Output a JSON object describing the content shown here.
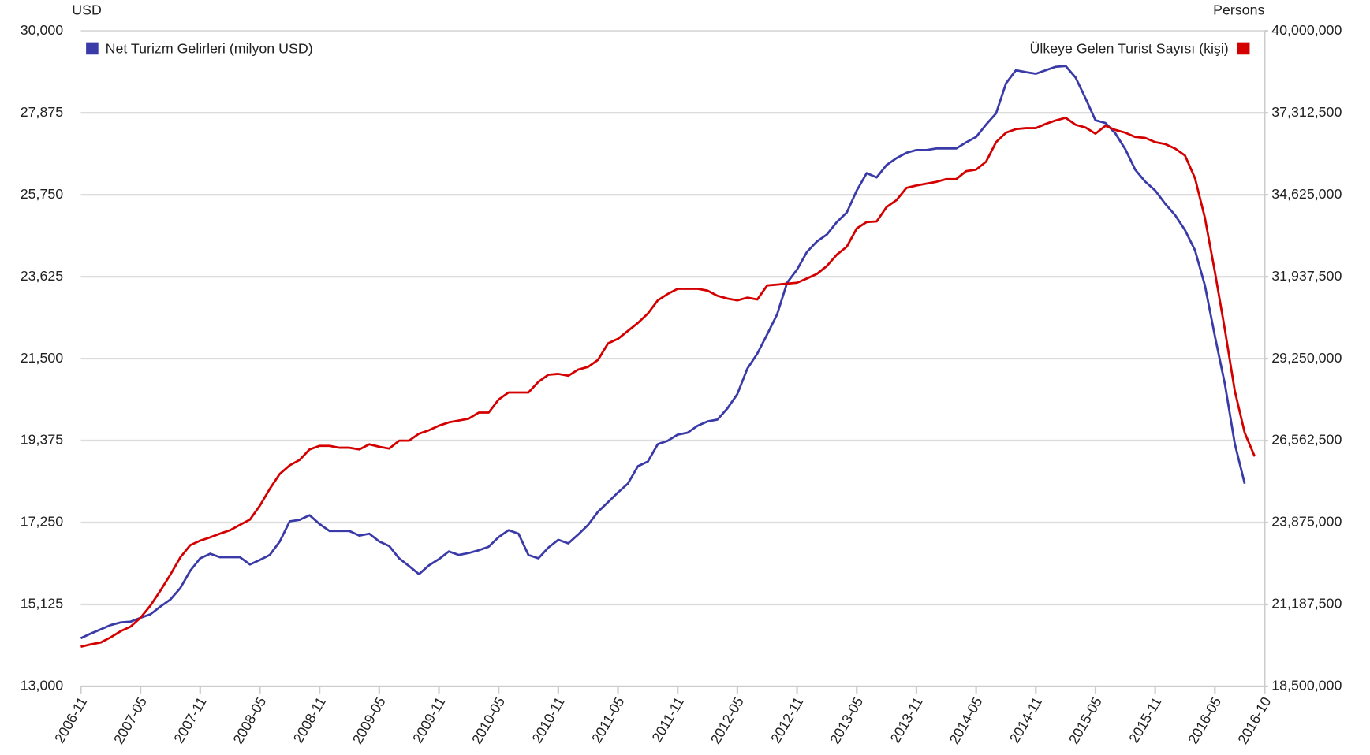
{
  "chart_data": {
    "type": "line",
    "y_label": "USD",
    "y2_label": "Persons",
    "legend": "top",
    "grid": true,
    "categories": [
      "2006-11",
      null,
      null,
      null,
      null,
      null,
      "2007-05",
      null,
      null,
      null,
      null,
      null,
      "2007-11",
      null,
      null,
      null,
      null,
      null,
      "2008-05",
      null,
      null,
      null,
      null,
      null,
      "2008-11",
      null,
      null,
      null,
      null,
      null,
      "2009-05",
      null,
      null,
      null,
      null,
      null,
      "2009-11",
      null,
      null,
      null,
      null,
      null,
      "2010-05",
      null,
      null,
      null,
      null,
      null,
      "2010-11",
      null,
      null,
      null,
      null,
      null,
      "2011-05",
      null,
      null,
      null,
      null,
      null,
      "2011-11",
      null,
      null,
      null,
      null,
      null,
      "2012-05",
      null,
      null,
      null,
      null,
      null,
      "2012-11",
      null,
      null,
      null,
      null,
      null,
      "2013-05",
      null,
      null,
      null,
      null,
      null,
      "2013-11",
      null,
      null,
      null,
      null,
      null,
      "2014-05",
      null,
      null,
      null,
      null,
      null,
      "2014-11",
      null,
      null,
      null,
      null,
      null,
      "2015-05",
      null,
      null,
      null,
      null,
      null,
      "2015-11",
      null,
      null,
      null,
      null,
      null,
      "2016-05",
      null,
      null,
      null,
      null,
      "2016-10"
    ],
    "ylim": [
      13000,
      30000
    ],
    "yticks": [
      {
        "value": 13000,
        "label": "13,000"
      },
      {
        "value": 15125,
        "label": "15,125"
      },
      {
        "value": 17250,
        "label": "17,250"
      },
      {
        "value": 19375,
        "label": "19,375"
      },
      {
        "value": 21500,
        "label": "21,500"
      },
      {
        "value": 23625,
        "label": "23,625"
      },
      {
        "value": 25750,
        "label": "25,750"
      },
      {
        "value": 27875,
        "label": "27,875"
      },
      {
        "value": 30000,
        "label": "30,000"
      }
    ],
    "y2lim": [
      18500000,
      40000000
    ],
    "y2ticks": [
      {
        "value": 18500000,
        "label": "18,500,000"
      },
      {
        "value": 21187500,
        "label": "21,187,500"
      },
      {
        "value": 23875000,
        "label": "23,875,000"
      },
      {
        "value": 26562500,
        "label": "26,562,500"
      },
      {
        "value": 29250000,
        "label": "29,250,000"
      },
      {
        "value": 31937500,
        "label": "31,937,500"
      },
      {
        "value": 34625000,
        "label": "34,625,000"
      },
      {
        "value": 37312500,
        "label": "37,312,500"
      },
      {
        "value": 40000000,
        "label": "40,000,000"
      }
    ],
    "series": [
      {
        "name": "Net Turizm Gelirleri (milyon USD)",
        "color": "#3a3aa8",
        "axis": "y",
        "values": [
          14250,
          14370,
          14480,
          14590,
          14660,
          14680,
          14780,
          14870,
          15070,
          15250,
          15550,
          16000,
          16320,
          16440,
          16350,
          16350,
          16350,
          16160,
          16280,
          16410,
          16760,
          17280,
          17320,
          17440,
          17210,
          17030,
          17030,
          17030,
          16910,
          16960,
          16760,
          16640,
          16320,
          16120,
          15910,
          16140,
          16300,
          16500,
          16410,
          16460,
          16530,
          16620,
          16870,
          17050,
          16960,
          16410,
          16320,
          16600,
          16800,
          16710,
          16940,
          17190,
          17530,
          17780,
          18030,
          18260,
          18710,
          18830,
          19280,
          19370,
          19530,
          19580,
          19760,
          19870,
          19920,
          20210,
          20580,
          21240,
          21630,
          22130,
          22650,
          23470,
          23810,
          24270,
          24540,
          24720,
          25040,
          25290,
          25860,
          26310,
          26200,
          26520,
          26700,
          26840,
          26910,
          26910,
          26950,
          26950,
          26950,
          27110,
          27250,
          27570,
          27860,
          28640,
          28980,
          28930,
          28890,
          28980,
          29070,
          29090,
          28790,
          28250,
          27680,
          27610,
          27340,
          26930,
          26400,
          26090,
          25860,
          25520,
          25220,
          24830,
          24310,
          23400,
          22080,
          20850,
          19300,
          18260,
          null,
          null
        ]
      },
      {
        "name": "Ülkeye Gelen Turist Sayısı (kişi)",
        "color": "#d40000",
        "axis": "y2",
        "values": [
          19800000,
          19880000,
          19940000,
          20110000,
          20310000,
          20460000,
          20750000,
          21150000,
          21640000,
          22160000,
          22730000,
          23130000,
          23280000,
          23390000,
          23510000,
          23620000,
          23800000,
          23970000,
          24430000,
          24980000,
          25470000,
          25750000,
          25930000,
          26270000,
          26390000,
          26390000,
          26330000,
          26330000,
          26270000,
          26440000,
          26360000,
          26300000,
          26560000,
          26560000,
          26790000,
          26900000,
          27050000,
          27160000,
          27220000,
          27280000,
          27480000,
          27480000,
          27910000,
          28140000,
          28140000,
          28140000,
          28490000,
          28720000,
          28750000,
          28690000,
          28890000,
          28980000,
          29210000,
          29750000,
          29900000,
          30160000,
          30420000,
          30730000,
          31160000,
          31370000,
          31540000,
          31540000,
          31540000,
          31480000,
          31310000,
          31220000,
          31160000,
          31250000,
          31190000,
          31650000,
          31680000,
          31710000,
          31740000,
          31880000,
          32030000,
          32290000,
          32660000,
          32920000,
          33520000,
          33730000,
          33750000,
          34220000,
          34450000,
          34850000,
          34930000,
          34990000,
          35050000,
          35140000,
          35140000,
          35400000,
          35450000,
          35710000,
          36350000,
          36660000,
          36780000,
          36810000,
          36810000,
          36950000,
          37060000,
          37150000,
          36920000,
          36830000,
          36630000,
          36890000,
          36750000,
          36660000,
          36520000,
          36490000,
          36350000,
          36290000,
          36140000,
          35910000,
          35170000,
          33870000,
          32090000,
          30210000,
          28200000,
          26820000,
          26040000,
          null
        ]
      }
    ]
  }
}
